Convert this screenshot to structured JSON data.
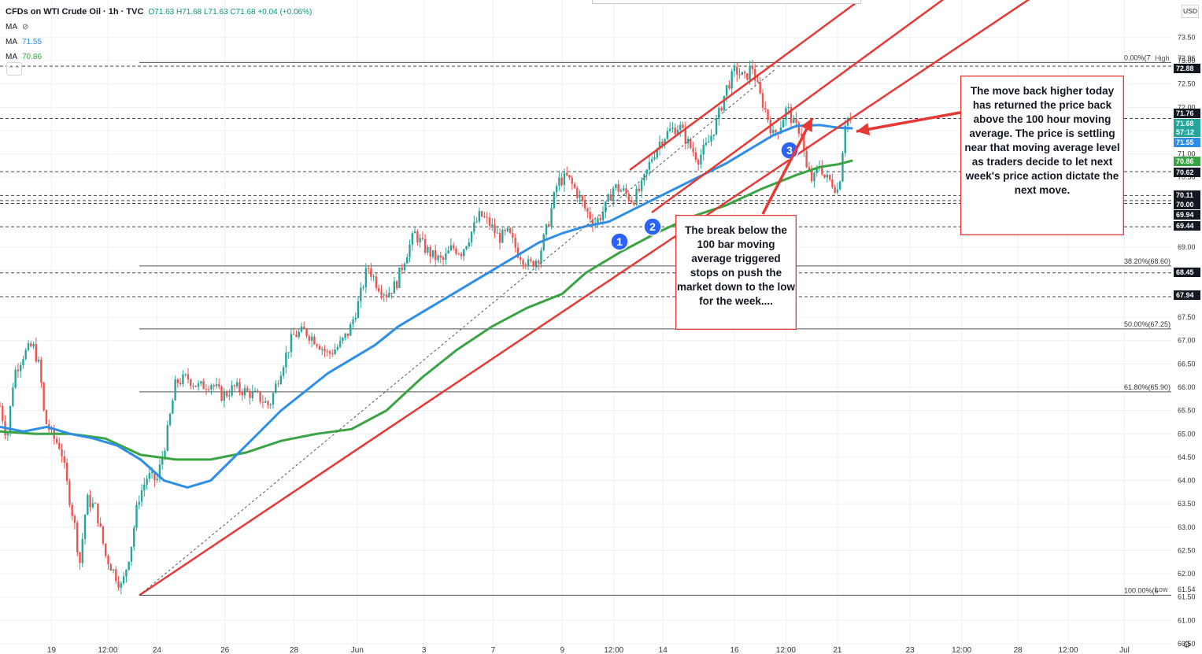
{
  "legend": {
    "symbol_line": "CFDs on WTI Crude Oil · 1h · TVC",
    "ohlc": "O71.63 H71.68 L71.63 C71.68 +0.04 (+0.06%)",
    "ma_label": "MA",
    "ma1_value": "",
    "ma1_icon": "eye-hidden-icon",
    "ma2_value": "71.55",
    "ma3_value": "70.86"
  },
  "unit_label": "USD",
  "notes": {
    "right": "The move back higher today has returned the price back above the 100 hour moving average. The price is settling near that moving average level as traders decide to let next week's price action dictate the next move.",
    "center": "The break below the 100 bar moving average triggered stops on push the market down to the low for the week...."
  },
  "markers": [
    "1",
    "2",
    "3"
  ],
  "colors": {
    "ma_blue": "#2f8ee8",
    "ma_green": "#3aa444",
    "trend_red": "#e53935",
    "candle_up": "#26a69a",
    "candle_down": "#ef5350",
    "marker_blue": "#2962ff"
  },
  "chart_data": {
    "type": "candlestick",
    "y_range": [
      60.5,
      74.3
    ],
    "y_ticks": [
      "73.50",
      "73.00",
      "72.50",
      "72.00",
      "71.50",
      "71.00",
      "70.50",
      "70.00",
      "69.50",
      "69.00",
      "68.50",
      "68.00",
      "67.50",
      "67.00",
      "66.50",
      "66.00",
      "65.50",
      "65.00",
      "64.50",
      "64.00",
      "63.50",
      "63.00",
      "62.50",
      "62.00",
      "61.50",
      "61.00",
      "60.50"
    ],
    "x_labels": [
      {
        "label": "19",
        "pos": 0.044
      },
      {
        "label": "12:00",
        "pos": 0.092
      },
      {
        "label": "24",
        "pos": 0.134
      },
      {
        "label": "26",
        "pos": 0.192
      },
      {
        "label": "28",
        "pos": 0.251
      },
      {
        "label": "Jun",
        "pos": 0.305
      },
      {
        "label": "3",
        "pos": 0.362
      },
      {
        "label": "7",
        "pos": 0.421
      },
      {
        "label": "9",
        "pos": 0.48
      },
      {
        "label": "12:00",
        "pos": 0.524
      },
      {
        "label": "14",
        "pos": 0.566
      },
      {
        "label": "16",
        "pos": 0.627
      },
      {
        "label": "12:00",
        "pos": 0.671
      },
      {
        "label": "21",
        "pos": 0.715
      },
      {
        "label": "23",
        "pos": 0.777
      },
      {
        "label": "12:00",
        "pos": 0.821
      },
      {
        "label": "28",
        "pos": 0.869
      },
      {
        "label": "12:00",
        "pos": 0.912
      },
      {
        "label": "Jul",
        "pos": 0.96
      }
    ],
    "price_tags": [
      {
        "value": "72.96",
        "label": "High",
        "style": "plain"
      },
      {
        "value": "72.88",
        "style": "box-dark"
      },
      {
        "value": "71.76",
        "style": "box-dark"
      },
      {
        "value": "71.68",
        "style": "box-teal"
      },
      {
        "value": "57:12",
        "style": "box-teal"
      },
      {
        "value": "71.55",
        "style": "box-blue"
      },
      {
        "value": "70.86",
        "style": "box-green"
      },
      {
        "value": "70.62",
        "style": "box-dark"
      },
      {
        "value": "70.11",
        "style": "box-dark"
      },
      {
        "value": "70.00",
        "style": "box-dark"
      },
      {
        "value": "69.94",
        "style": "box-dark"
      },
      {
        "value": "69.44",
        "style": "box-dark"
      },
      {
        "value": "68.45",
        "style": "box-dark"
      },
      {
        "value": "67.94",
        "style": "box-dark"
      },
      {
        "value": "61.54",
        "label": "Low",
        "style": "plain"
      }
    ],
    "dashed_levels": [
      72.88,
      71.76,
      70.62,
      70.11,
      70.0,
      69.94,
      69.44,
      68.45,
      67.94
    ],
    "fib_levels": [
      {
        "label": "0.00%(7",
        "value": 72.96
      },
      {
        "label": "38.20%(68.60)",
        "value": 68.6
      },
      {
        "label": "50.00%(67.25)",
        "value": 67.25
      },
      {
        "label": "61.80%(65.90)",
        "value": 65.9
      },
      {
        "label": "100.00%(6",
        "value": 61.54
      }
    ],
    "price_path": [
      [
        0.0,
        65.6
      ],
      [
        0.006,
        64.9
      ],
      [
        0.012,
        66.3
      ],
      [
        0.02,
        66.7
      ],
      [
        0.028,
        66.9
      ],
      [
        0.034,
        66.4
      ],
      [
        0.038,
        65.3
      ],
      [
        0.046,
        64.9
      ],
      [
        0.052,
        64.7
      ],
      [
        0.058,
        63.8
      ],
      [
        0.064,
        63.0
      ],
      [
        0.068,
        62.2
      ],
      [
        0.074,
        63.6
      ],
      [
        0.082,
        63.4
      ],
      [
        0.09,
        62.4
      ],
      [
        0.098,
        62.0
      ],
      [
        0.104,
        61.7
      ],
      [
        0.112,
        62.6
      ],
      [
        0.118,
        63.6
      ],
      [
        0.126,
        64.1
      ],
      [
        0.134,
        64.0
      ],
      [
        0.142,
        64.9
      ],
      [
        0.15,
        66.1
      ],
      [
        0.16,
        66.2
      ],
      [
        0.17,
        66.0
      ],
      [
        0.18,
        66.1
      ],
      [
        0.19,
        65.8
      ],
      [
        0.2,
        66.0
      ],
      [
        0.21,
        65.9
      ],
      [
        0.22,
        65.8
      ],
      [
        0.23,
        65.6
      ],
      [
        0.24,
        66.4
      ],
      [
        0.25,
        67.1
      ],
      [
        0.26,
        67.2
      ],
      [
        0.27,
        67.0
      ],
      [
        0.28,
        66.7
      ],
      [
        0.29,
        66.9
      ],
      [
        0.298,
        67.2
      ],
      [
        0.306,
        67.8
      ],
      [
        0.314,
        68.6
      ],
      [
        0.322,
        68.2
      ],
      [
        0.33,
        68.0
      ],
      [
        0.338,
        68.2
      ],
      [
        0.346,
        68.8
      ],
      [
        0.354,
        69.3
      ],
      [
        0.362,
        69.0
      ],
      [
        0.37,
        68.8
      ],
      [
        0.378,
        68.7
      ],
      [
        0.386,
        69.0
      ],
      [
        0.394,
        68.9
      ],
      [
        0.402,
        69.3
      ],
      [
        0.41,
        69.7
      ],
      [
        0.418,
        69.5
      ],
      [
        0.426,
        69.2
      ],
      [
        0.434,
        69.3
      ],
      [
        0.442,
        68.9
      ],
      [
        0.452,
        68.6
      ],
      [
        0.46,
        68.8
      ],
      [
        0.468,
        69.5
      ],
      [
        0.476,
        70.4
      ],
      [
        0.484,
        70.5
      ],
      [
        0.492,
        70.2
      ],
      [
        0.5,
        69.8
      ],
      [
        0.508,
        69.5
      ],
      [
        0.516,
        69.8
      ],
      [
        0.524,
        70.3
      ],
      [
        0.532,
        70.2
      ],
      [
        0.54,
        70.0
      ],
      [
        0.548,
        70.3
      ],
      [
        0.556,
        70.9
      ],
      [
        0.564,
        71.3
      ],
      [
        0.572,
        71.5
      ],
      [
        0.58,
        71.6
      ],
      [
        0.588,
        71.2
      ],
      [
        0.596,
        70.9
      ],
      [
        0.604,
        71.2
      ],
      [
        0.612,
        71.7
      ],
      [
        0.62,
        72.4
      ],
      [
        0.628,
        72.8
      ],
      [
        0.636,
        72.6
      ],
      [
        0.642,
        72.9
      ],
      [
        0.648,
        72.3
      ],
      [
        0.654,
        71.9
      ],
      [
        0.66,
        71.4
      ],
      [
        0.666,
        71.6
      ],
      [
        0.672,
        72.0
      ],
      [
        0.678,
        71.6
      ],
      [
        0.684,
        71.5
      ],
      [
        0.688,
        70.7
      ],
      [
        0.694,
        70.4
      ],
      [
        0.7,
        70.8
      ],
      [
        0.704,
        70.5
      ],
      [
        0.71,
        70.4
      ],
      [
        0.716,
        70.2
      ],
      [
        0.722,
        71.8
      ],
      [
        0.728,
        71.7
      ]
    ],
    "ma_100": [
      [
        0.0,
        65.15
      ],
      [
        0.02,
        65.05
      ],
      [
        0.04,
        65.15
      ],
      [
        0.06,
        65.0
      ],
      [
        0.08,
        64.9
      ],
      [
        0.1,
        64.75
      ],
      [
        0.12,
        64.45
      ],
      [
        0.14,
        64.0
      ],
      [
        0.16,
        63.85
      ],
      [
        0.18,
        64.0
      ],
      [
        0.2,
        64.5
      ],
      [
        0.22,
        65.0
      ],
      [
        0.24,
        65.5
      ],
      [
        0.26,
        65.9
      ],
      [
        0.28,
        66.3
      ],
      [
        0.3,
        66.6
      ],
      [
        0.32,
        66.9
      ],
      [
        0.34,
        67.3
      ],
      [
        0.36,
        67.6
      ],
      [
        0.38,
        67.9
      ],
      [
        0.4,
        68.2
      ],
      [
        0.42,
        68.5
      ],
      [
        0.44,
        68.8
      ],
      [
        0.46,
        69.1
      ],
      [
        0.48,
        69.3
      ],
      [
        0.5,
        69.45
      ],
      [
        0.52,
        69.55
      ],
      [
        0.54,
        69.8
      ],
      [
        0.56,
        70.05
      ],
      [
        0.58,
        70.3
      ],
      [
        0.6,
        70.55
      ],
      [
        0.62,
        70.8
      ],
      [
        0.64,
        71.1
      ],
      [
        0.66,
        71.4
      ],
      [
        0.68,
        71.6
      ],
      [
        0.7,
        71.62
      ],
      [
        0.716,
        71.56
      ],
      [
        0.728,
        71.55
      ]
    ],
    "ma_200": [
      [
        0.0,
        65.05
      ],
      [
        0.03,
        65.0
      ],
      [
        0.06,
        65.0
      ],
      [
        0.09,
        64.9
      ],
      [
        0.12,
        64.55
      ],
      [
        0.15,
        64.45
      ],
      [
        0.18,
        64.45
      ],
      [
        0.21,
        64.6
      ],
      [
        0.24,
        64.85
      ],
      [
        0.27,
        65.0
      ],
      [
        0.3,
        65.1
      ],
      [
        0.33,
        65.5
      ],
      [
        0.36,
        66.2
      ],
      [
        0.39,
        66.8
      ],
      [
        0.42,
        67.3
      ],
      [
        0.45,
        67.7
      ],
      [
        0.48,
        68.0
      ],
      [
        0.5,
        68.45
      ],
      [
        0.53,
        68.9
      ],
      [
        0.56,
        69.3
      ],
      [
        0.59,
        69.65
      ],
      [
        0.62,
        69.9
      ],
      [
        0.65,
        70.25
      ],
      [
        0.68,
        70.55
      ],
      [
        0.7,
        70.72
      ],
      [
        0.716,
        70.78
      ],
      [
        0.728,
        70.86
      ]
    ]
  }
}
